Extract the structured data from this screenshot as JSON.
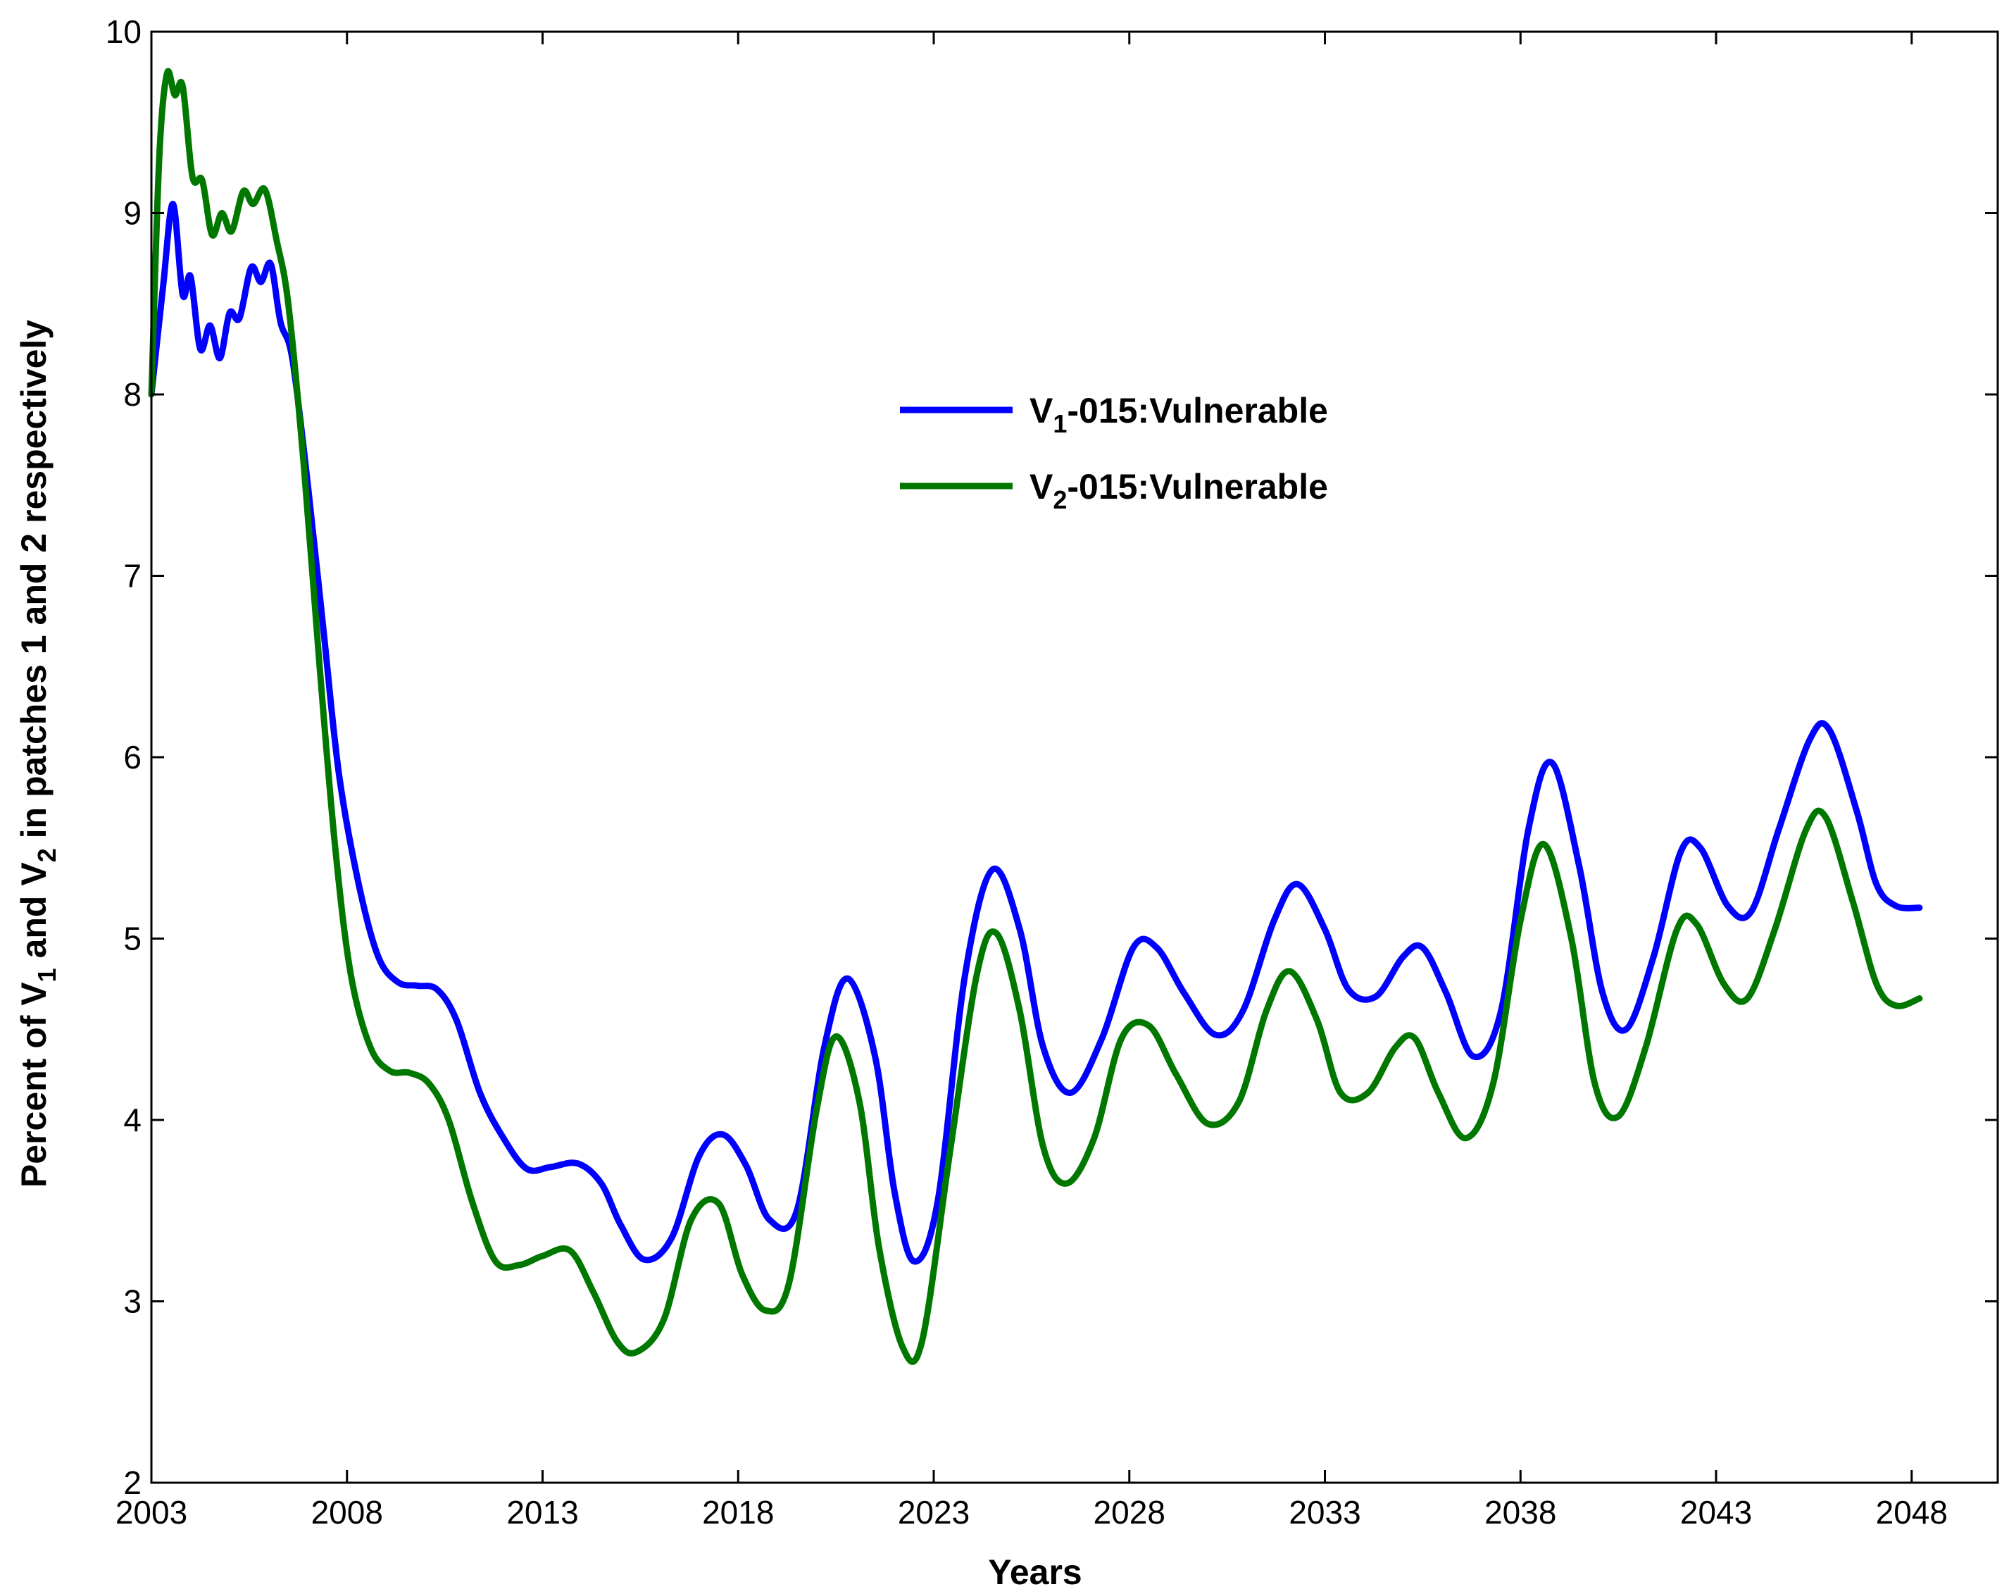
{
  "chart_data": {
    "type": "line",
    "title": "",
    "xlabel": "Years",
    "ylabel": {
      "prefix": "Percent of V",
      "sub1": "1",
      "mid": " and V",
      "sub2": "2",
      "suffix": " in patches 1 and 2 respectively"
    },
    "xlim": [
      2003,
      2050.2
    ],
    "ylim": [
      2,
      10
    ],
    "xticks": [
      2003,
      2008,
      2013,
      2018,
      2023,
      2028,
      2033,
      2038,
      2043,
      2048
    ],
    "xtick_labels": [
      "2003",
      "2008",
      "2013",
      "2018",
      "2023",
      "2028",
      "2033",
      "2038",
      "2043",
      "2048"
    ],
    "yticks": [
      2,
      3,
      4,
      5,
      6,
      7,
      8,
      9,
      10
    ],
    "ytick_labels": [
      "2",
      "3",
      "4",
      "5",
      "6",
      "7",
      "8",
      "9",
      "10"
    ],
    "legend_position": "center-right",
    "series": [
      {
        "name": "V1-015:Vulnerable",
        "label_main": "V",
        "label_sub": "1",
        "label_rest": "-015:Vulnerable",
        "color": "#0000ff",
        "points": [
          [
            2003.0,
            8.0
          ],
          [
            2003.3,
            8.6
          ],
          [
            2003.55,
            9.05
          ],
          [
            2003.8,
            8.55
          ],
          [
            2004.0,
            8.65
          ],
          [
            2004.25,
            8.25
          ],
          [
            2004.5,
            8.38
          ],
          [
            2004.75,
            8.2
          ],
          [
            2005.0,
            8.45
          ],
          [
            2005.25,
            8.42
          ],
          [
            2005.55,
            8.7
          ],
          [
            2005.8,
            8.62
          ],
          [
            2006.05,
            8.72
          ],
          [
            2006.3,
            8.4
          ],
          [
            2006.6,
            8.2
          ],
          [
            2007.0,
            7.5
          ],
          [
            2007.4,
            6.7
          ],
          [
            2007.8,
            5.9
          ],
          [
            2008.3,
            5.3
          ],
          [
            2008.8,
            4.9
          ],
          [
            2009.3,
            4.76
          ],
          [
            2009.8,
            4.74
          ],
          [
            2010.3,
            4.72
          ],
          [
            2010.8,
            4.55
          ],
          [
            2011.4,
            4.15
          ],
          [
            2012.0,
            3.9
          ],
          [
            2012.6,
            3.73
          ],
          [
            2013.2,
            3.74
          ],
          [
            2013.9,
            3.76
          ],
          [
            2014.5,
            3.65
          ],
          [
            2015.0,
            3.42
          ],
          [
            2015.6,
            3.23
          ],
          [
            2016.3,
            3.35
          ],
          [
            2017.0,
            3.8
          ],
          [
            2017.6,
            3.92
          ],
          [
            2018.2,
            3.75
          ],
          [
            2018.8,
            3.45
          ],
          [
            2019.5,
            3.5
          ],
          [
            2020.2,
            4.4
          ],
          [
            2020.8,
            4.78
          ],
          [
            2021.5,
            4.35
          ],
          [
            2022.0,
            3.6
          ],
          [
            2022.5,
            3.22
          ],
          [
            2023.1,
            3.55
          ],
          [
            2023.8,
            4.8
          ],
          [
            2024.5,
            5.38
          ],
          [
            2025.2,
            5.05
          ],
          [
            2025.8,
            4.4
          ],
          [
            2026.5,
            4.15
          ],
          [
            2027.3,
            4.45
          ],
          [
            2028.1,
            4.95
          ],
          [
            2028.7,
            4.95
          ],
          [
            2029.4,
            4.7
          ],
          [
            2030.2,
            4.47
          ],
          [
            2030.9,
            4.6
          ],
          [
            2031.7,
            5.1
          ],
          [
            2032.3,
            5.3
          ],
          [
            2033.0,
            5.05
          ],
          [
            2033.6,
            4.72
          ],
          [
            2034.3,
            4.68
          ],
          [
            2035.0,
            4.9
          ],
          [
            2035.5,
            4.95
          ],
          [
            2036.1,
            4.7
          ],
          [
            2036.8,
            4.35
          ],
          [
            2037.5,
            4.6
          ],
          [
            2038.2,
            5.6
          ],
          [
            2038.8,
            5.97
          ],
          [
            2039.5,
            5.4
          ],
          [
            2040.1,
            4.7
          ],
          [
            2040.7,
            4.5
          ],
          [
            2041.4,
            4.9
          ],
          [
            2042.1,
            5.48
          ],
          [
            2042.6,
            5.5
          ],
          [
            2043.3,
            5.18
          ],
          [
            2043.9,
            5.15
          ],
          [
            2044.6,
            5.6
          ],
          [
            2045.4,
            6.1
          ],
          [
            2045.9,
            6.15
          ],
          [
            2046.6,
            5.7
          ],
          [
            2047.1,
            5.3
          ],
          [
            2047.6,
            5.18
          ],
          [
            2048.2,
            5.17
          ]
        ]
      },
      {
        "name": "V2-015:Vulnerable",
        "label_main": "V",
        "label_sub": "2",
        "label_rest": "-015:Vulnerable",
        "color": "#007800",
        "points": [
          [
            2003.0,
            8.0
          ],
          [
            2003.2,
            9.3
          ],
          [
            2003.4,
            9.77
          ],
          [
            2003.6,
            9.65
          ],
          [
            2003.8,
            9.7
          ],
          [
            2004.05,
            9.2
          ],
          [
            2004.3,
            9.18
          ],
          [
            2004.55,
            8.88
          ],
          [
            2004.8,
            9.0
          ],
          [
            2005.05,
            8.9
          ],
          [
            2005.35,
            9.12
          ],
          [
            2005.6,
            9.05
          ],
          [
            2005.9,
            9.13
          ],
          [
            2006.2,
            8.85
          ],
          [
            2006.5,
            8.5
          ],
          [
            2006.9,
            7.6
          ],
          [
            2007.3,
            6.5
          ],
          [
            2007.7,
            5.5
          ],
          [
            2008.1,
            4.8
          ],
          [
            2008.6,
            4.4
          ],
          [
            2009.1,
            4.27
          ],
          [
            2009.6,
            4.26
          ],
          [
            2010.1,
            4.2
          ],
          [
            2010.6,
            4.0
          ],
          [
            2011.2,
            3.55
          ],
          [
            2011.8,
            3.22
          ],
          [
            2012.4,
            3.2
          ],
          [
            2013.0,
            3.25
          ],
          [
            2013.7,
            3.28
          ],
          [
            2014.3,
            3.05
          ],
          [
            2014.9,
            2.78
          ],
          [
            2015.4,
            2.72
          ],
          [
            2016.1,
            2.9
          ],
          [
            2016.8,
            3.45
          ],
          [
            2017.5,
            3.54
          ],
          [
            2018.1,
            3.15
          ],
          [
            2018.7,
            2.95
          ],
          [
            2019.3,
            3.1
          ],
          [
            2020.0,
            4.05
          ],
          [
            2020.5,
            4.46
          ],
          [
            2021.1,
            4.1
          ],
          [
            2021.6,
            3.3
          ],
          [
            2022.2,
            2.75
          ],
          [
            2022.7,
            2.78
          ],
          [
            2023.4,
            3.8
          ],
          [
            2024.1,
            4.8
          ],
          [
            2024.6,
            5.03
          ],
          [
            2025.2,
            4.6
          ],
          [
            2025.8,
            3.85
          ],
          [
            2026.4,
            3.65
          ],
          [
            2027.1,
            3.9
          ],
          [
            2027.8,
            4.45
          ],
          [
            2028.5,
            4.52
          ],
          [
            2029.2,
            4.25
          ],
          [
            2030.0,
            3.98
          ],
          [
            2030.8,
            4.1
          ],
          [
            2031.5,
            4.6
          ],
          [
            2032.1,
            4.82
          ],
          [
            2032.8,
            4.55
          ],
          [
            2033.4,
            4.15
          ],
          [
            2034.1,
            4.15
          ],
          [
            2034.8,
            4.4
          ],
          [
            2035.3,
            4.45
          ],
          [
            2035.9,
            4.15
          ],
          [
            2036.6,
            3.9
          ],
          [
            2037.3,
            4.2
          ],
          [
            2038.0,
            5.1
          ],
          [
            2038.6,
            5.52
          ],
          [
            2039.3,
            5.0
          ],
          [
            2039.9,
            4.2
          ],
          [
            2040.5,
            4.02
          ],
          [
            2041.2,
            4.4
          ],
          [
            2042.0,
            5.05
          ],
          [
            2042.5,
            5.08
          ],
          [
            2043.2,
            4.75
          ],
          [
            2043.8,
            4.67
          ],
          [
            2044.5,
            5.05
          ],
          [
            2045.3,
            5.6
          ],
          [
            2045.8,
            5.67
          ],
          [
            2046.5,
            5.2
          ],
          [
            2047.1,
            4.75
          ],
          [
            2047.6,
            4.63
          ],
          [
            2048.2,
            4.67
          ]
        ]
      }
    ]
  }
}
